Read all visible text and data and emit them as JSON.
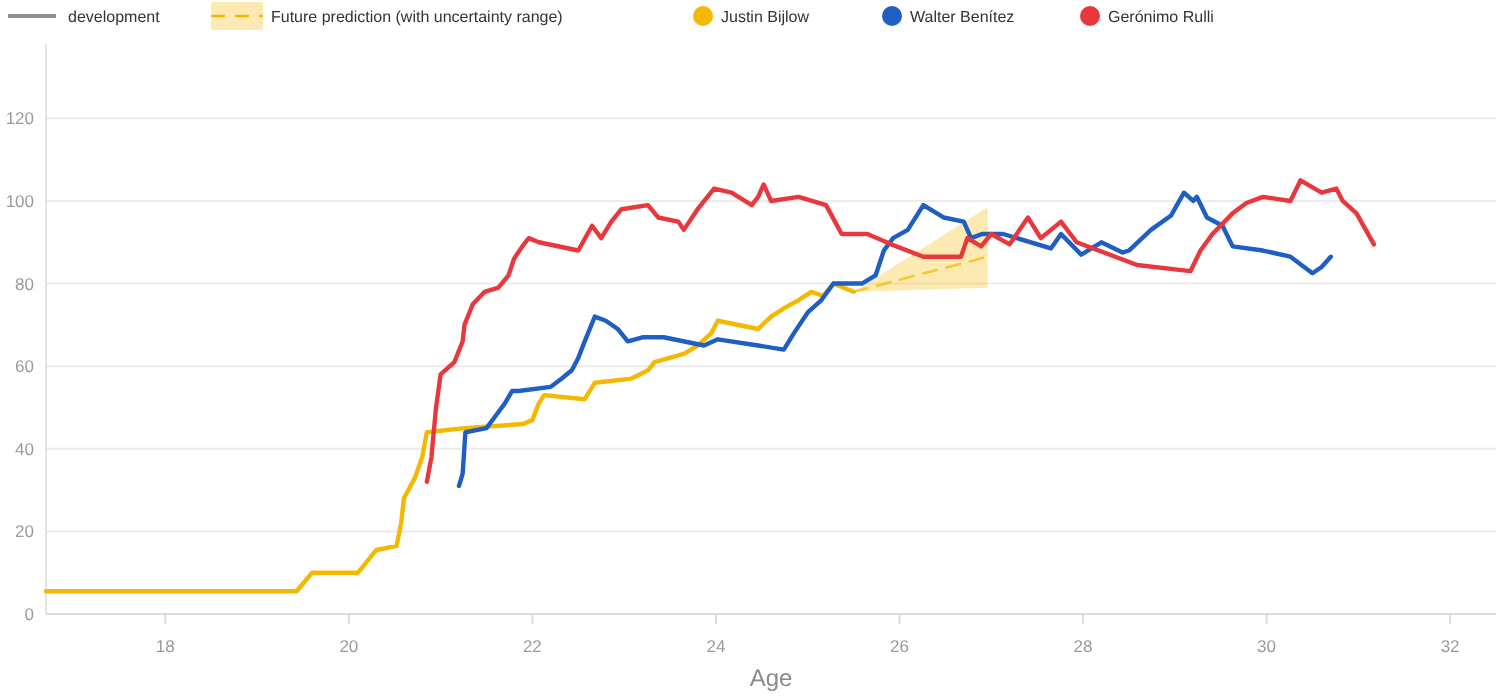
{
  "chart_data": {
    "type": "line",
    "xlabel": "Age",
    "xlim": [
      16.7,
      32.5
    ],
    "xticks": [
      18,
      20,
      22,
      24,
      26,
      28,
      30,
      32
    ],
    "ylim": [
      0,
      138
    ],
    "yticks": [
      0,
      20,
      40,
      60,
      80,
      100,
      120
    ],
    "grid": "y",
    "legend": "top left",
    "line_style": "solid",
    "annotations": [
      "development"
    ],
    "series": [
      {
        "name": "Justin Bijlow",
        "color": "#f5b800",
        "x": [
          16.7,
          19.43,
          19.6,
          20.1,
          20.3,
          20.52,
          20.57,
          20.6,
          20.72,
          20.8,
          20.85,
          21.26,
          21.9,
          22.0,
          22.07,
          22.13,
          22.57,
          22.68,
          23.08,
          23.26,
          23.33,
          23.65,
          23.8,
          23.95,
          24.02,
          24.46,
          24.6,
          24.74,
          24.9,
          25.04,
          25.17,
          25.28,
          25.5
        ],
        "values": [
          5.5,
          5.5,
          10,
          10,
          15.5,
          16.5,
          22,
          28,
          33,
          38,
          44,
          45,
          46,
          47,
          51,
          53,
          52,
          56,
          57,
          59,
          61,
          63,
          65,
          68,
          71,
          69,
          72,
          74,
          76,
          78,
          77,
          80,
          78
        ]
      },
      {
        "name": "Future prediction (with uncertainty range)",
        "color": "#f5b800",
        "line_style": "dashed",
        "x": [
          25.5,
          26.96
        ],
        "values": [
          78,
          86.5
        ],
        "lower": [
          78,
          79
        ],
        "upper": [
          78,
          98.5
        ]
      },
      {
        "name": "Walter Benítez",
        "color": "#1f5fc4",
        "x": [
          21.2,
          21.24,
          21.27,
          21.5,
          21.6,
          21.7,
          21.78,
          21.85,
          22.2,
          22.32,
          22.43,
          22.5,
          22.57,
          22.68,
          22.8,
          22.93,
          23.04,
          23.2,
          23.43,
          23.87,
          24.02,
          24.46,
          24.74,
          24.85,
          25.0,
          25.15,
          25.28,
          25.59,
          25.74,
          25.83,
          25.93,
          26.09,
          26.26,
          26.48,
          26.7,
          26.78,
          26.9,
          27.13,
          27.65,
          27.76,
          27.98,
          28.2,
          28.43,
          28.5,
          28.74,
          28.96,
          29.1,
          29.2,
          29.24,
          29.35,
          29.52,
          29.63,
          29.96,
          30.26,
          30.5,
          30.6,
          30.7
        ],
        "values": [
          31,
          34,
          44,
          45,
          48,
          51,
          54,
          54,
          55,
          57,
          59,
          62,
          66,
          72,
          71,
          69,
          66,
          67,
          67,
          65,
          66.5,
          65,
          64,
          68,
          73,
          76,
          80,
          80,
          82,
          88,
          91,
          93,
          99,
          96,
          95,
          91,
          92,
          92,
          88.5,
          92,
          87,
          90,
          87.5,
          88,
          93,
          96.5,
          102,
          100,
          101,
          96,
          94,
          89,
          88,
          86.5,
          82.5,
          84,
          86.5
        ]
      },
      {
        "name": "Gerónimo Rulli",
        "color": "#e8383d",
        "x": [
          20.85,
          20.9,
          20.95,
          21.0,
          21.15,
          21.24,
          21.26,
          21.35,
          21.48,
          21.63,
          21.74,
          21.8,
          21.89,
          21.96,
          22.07,
          22.5,
          22.65,
          22.75,
          22.86,
          22.97,
          23.26,
          23.37,
          23.59,
          23.65,
          23.8,
          23.98,
          24.17,
          24.39,
          24.46,
          24.52,
          24.6,
          24.9,
          25.2,
          25.37,
          25.65,
          25.91,
          26.26,
          26.67,
          26.74,
          26.89,
          27.0,
          27.2,
          27.4,
          27.54,
          27.76,
          27.93,
          28.59,
          29.17,
          29.28,
          29.41,
          29.63,
          29.78,
          29.96,
          30.26,
          30.37,
          30.6,
          30.76,
          30.83,
          30.98,
          31.17
        ],
        "values": [
          32,
          38,
          50,
          58,
          61,
          66,
          70,
          75,
          78,
          79,
          82,
          86,
          89,
          91,
          90,
          88,
          94,
          91,
          95,
          98,
          99,
          96,
          95,
          93,
          98,
          103,
          102,
          99,
          101,
          104,
          100,
          101,
          99,
          92,
          92,
          89.5,
          86.5,
          86.5,
          91,
          89,
          92,
          89.5,
          96,
          91,
          95,
          90,
          84.5,
          83,
          88,
          92,
          97,
          99.5,
          101,
          100,
          105,
          102,
          103,
          100,
          97,
          89.5
        ]
      }
    ]
  }
}
